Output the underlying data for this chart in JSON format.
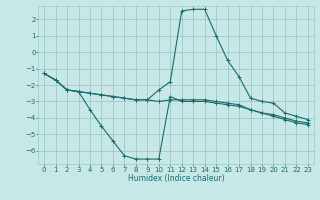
{
  "xlabel": "Humidex (Indice chaleur)",
  "background_color": "#c8e8e8",
  "grid_color": "#a0c8c8",
  "line_color": "#1a6b6b",
  "xlim": [
    -0.5,
    23.5
  ],
  "ylim": [
    -6.8,
    2.8
  ],
  "xticks": [
    0,
    1,
    2,
    3,
    4,
    5,
    6,
    7,
    8,
    9,
    10,
    11,
    12,
    13,
    14,
    15,
    16,
    17,
    18,
    19,
    20,
    21,
    22,
    23
  ],
  "yticks": [
    -6,
    -5,
    -4,
    -3,
    -2,
    -1,
    0,
    1,
    2
  ],
  "series": [
    {
      "x": [
        0,
        1,
        2,
        3,
        4,
        5,
        6,
        7,
        8,
        9,
        10,
        11,
        12,
        13,
        14,
        15,
        16,
        17,
        18,
        19,
        20,
        21,
        22,
        23
      ],
      "y": [
        -1.3,
        -1.7,
        -2.3,
        -2.4,
        -3.5,
        -4.5,
        -5.4,
        -6.3,
        -6.5,
        -6.5,
        -6.5,
        -2.7,
        -3.0,
        -3.0,
        -3.0,
        -3.1,
        -3.2,
        -3.3,
        -3.5,
        -3.7,
        -3.9,
        -4.1,
        -4.3,
        -4.4
      ]
    },
    {
      "x": [
        0,
        1,
        2,
        3,
        4,
        5,
        6,
        7,
        8,
        9,
        10,
        11,
        12,
        13,
        14,
        15,
        16,
        17,
        18,
        19,
        20,
        21,
        22,
        23
      ],
      "y": [
        -1.3,
        -1.7,
        -2.3,
        -2.4,
        -2.5,
        -2.6,
        -2.7,
        -2.8,
        -2.9,
        -2.9,
        -2.3,
        -1.8,
        2.5,
        2.6,
        2.6,
        1.0,
        -0.5,
        -1.5,
        -2.8,
        -3.0,
        -3.1,
        -3.7,
        -3.9,
        -4.1
      ]
    },
    {
      "x": [
        0,
        1,
        2,
        3,
        4,
        5,
        6,
        7,
        8,
        9,
        10,
        11,
        12,
        13,
        14,
        15,
        16,
        17,
        18,
        19,
        20,
        21,
        22,
        23
      ],
      "y": [
        -1.3,
        -1.7,
        -2.3,
        -2.4,
        -2.5,
        -2.6,
        -2.7,
        -2.8,
        -2.9,
        -2.9,
        -3.0,
        -2.9,
        -2.9,
        -2.9,
        -2.9,
        -3.0,
        -3.1,
        -3.2,
        -3.5,
        -3.7,
        -3.8,
        -4.0,
        -4.2,
        -4.3
      ]
    }
  ]
}
